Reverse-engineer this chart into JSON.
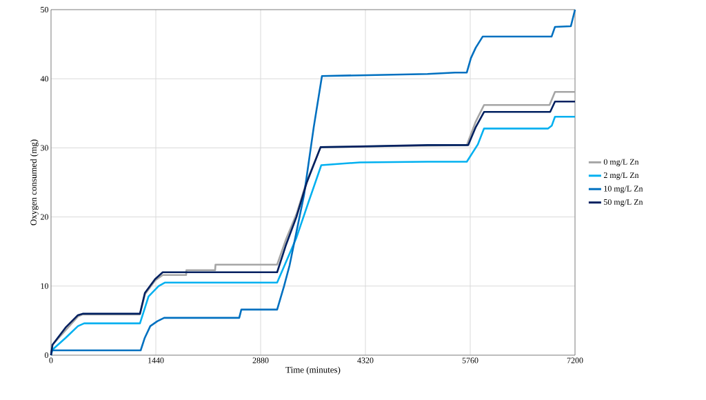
{
  "chart_data": {
    "type": "line",
    "xlabel": "Time (minutes)",
    "ylabel": "Oxygen consumed (mg)",
    "xlim": [
      0,
      7200
    ],
    "xticks": [
      0,
      1440,
      2880,
      4320,
      5760,
      7200
    ],
    "ylim": [
      0,
      50
    ],
    "yticks": [
      0,
      10,
      20,
      30,
      40,
      50
    ],
    "grid": true,
    "legend": "right",
    "marker": "none",
    "line_style": "solid",
    "series": [
      {
        "name": "0 mg/L Zn",
        "color": "#a5a5a5",
        "x": [
          0,
          20,
          200,
          370,
          435,
          1222,
          1290,
          1430,
          1535,
          1857,
          1860,
          2255,
          2260,
          3107,
          3230,
          3372,
          3515,
          3704,
          5713,
          5836,
          5950,
          6850,
          6925,
          7200
        ],
        "values": [
          0,
          1.5,
          3.6,
          5.6,
          5.9,
          5.9,
          8.8,
          10.8,
          11.6,
          11.6,
          12.3,
          12.3,
          13.1,
          13.1,
          16.8,
          20.4,
          25.2,
          30.1,
          30.4,
          33.8,
          36.2,
          36.2,
          38.1,
          38.1
        ]
      },
      {
        "name": "2 mg/L Zn",
        "color": "#00b0f0",
        "x": [
          0,
          20,
          200,
          370,
          455,
          1222,
          1340,
          1478,
          1563,
          3107,
          3372,
          3533,
          3714,
          4244,
          5173,
          5713,
          5865,
          5950,
          6831,
          6880,
          6925,
          7200
        ],
        "values": [
          0,
          0.8,
          2.5,
          4.2,
          4.6,
          4.6,
          8.5,
          10,
          10.5,
          10.5,
          17,
          22,
          27.5,
          27.9,
          28.0,
          28.0,
          30.5,
          32.8,
          32.8,
          33.2,
          34.5,
          34.5
        ]
      },
      {
        "name": "10 mg/L Zn",
        "color": "#0070c0",
        "x": [
          0,
          10,
          1232,
          1288,
          1364,
          1459,
          1554,
          2586,
          2615,
          3107,
          3202,
          3278,
          3477,
          3610,
          3723,
          4244,
          5173,
          5552,
          5713,
          5770,
          5836,
          5931,
          6878,
          6925,
          7143,
          7200
        ],
        "values": [
          0,
          0.7,
          0.7,
          2.5,
          4.2,
          4.9,
          5.4,
          5.4,
          6.6,
          6.6,
          10,
          13,
          23.2,
          33,
          40.4,
          40.5,
          40.7,
          40.9,
          40.9,
          43,
          44.5,
          46.1,
          46.1,
          47.5,
          47.6,
          50
        ]
      },
      {
        "name": "50 mg/L Zn",
        "color": "#002060",
        "x": [
          0,
          20,
          200,
          370,
          435,
          1222,
          1290,
          1430,
          1535,
          3107,
          3230,
          3372,
          3515,
          3704,
          4244,
          5173,
          5732,
          5836,
          5950,
          6859,
          6925,
          7200
        ],
        "values": [
          0,
          1.5,
          4,
          5.8,
          6.0,
          6.0,
          9,
          11,
          12,
          12,
          16,
          20,
          25,
          30.1,
          30.2,
          30.4,
          30.4,
          33,
          35.2,
          35.2,
          36.7,
          36.7
        ]
      }
    ]
  }
}
